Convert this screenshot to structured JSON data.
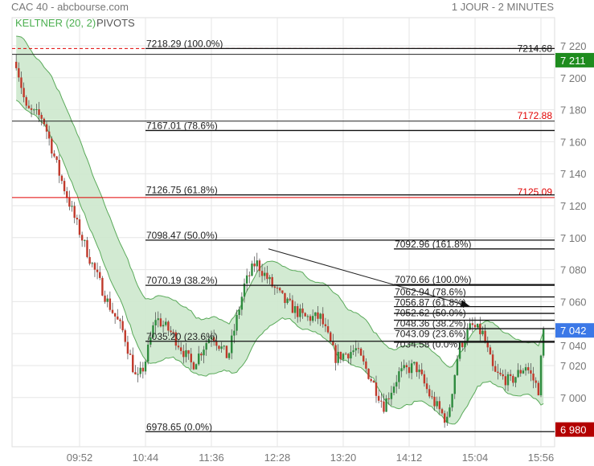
{
  "header": {
    "title": "CAC 40 - abcbourse.com",
    "period": "1 JOUR - 2 MINUTES"
  },
  "indicators": {
    "keltner": "KELTNER (20, 2)",
    "pivots": "PIVOTS"
  },
  "colors": {
    "up": "#2e8b3e",
    "down": "#c0392b",
    "band_fill": "#cde8cd",
    "band_line": "#5aaa5a",
    "last_price": "#3b78e7",
    "high_label": "#1e8c1e",
    "low_label": "#b30000",
    "pivot_red": "#e00000"
  },
  "chart_data": {
    "type": "candlestick",
    "title": "CAC 40",
    "y_ticks": [
      7220,
      7200,
      7180,
      7160,
      7140,
      7120,
      7100,
      7080,
      7060,
      7040,
      7020,
      7000
    ],
    "x_ticks": [
      "09:52",
      "10:44",
      "11:36",
      "12:28",
      "13:20",
      "14:12",
      "15:04",
      "15:56"
    ],
    "ylim": [
      6970,
      7240
    ],
    "grid": true,
    "price_path": [
      [
        "09:02",
        7210
      ],
      [
        "09:10",
        7180
      ],
      [
        "09:23",
        7175
      ],
      [
        "09:36",
        7140
      ],
      [
        "09:49",
        7110
      ],
      [
        "10:01",
        7085
      ],
      [
        "10:14",
        7060
      ],
      [
        "10:27",
        7040
      ],
      [
        "10:37",
        7010
      ],
      [
        "10:43",
        7020
      ],
      [
        "10:52",
        7050
      ],
      [
        "11:05",
        7040
      ],
      [
        "11:21",
        7020
      ],
      [
        "11:36",
        7040
      ],
      [
        "11:49",
        7025
      ],
      [
        "12:02",
        7070
      ],
      [
        "12:11",
        7085
      ],
      [
        "12:24",
        7070
      ],
      [
        "12:34",
        7060
      ],
      [
        "12:49",
        7050
      ],
      [
        "13:02",
        7050
      ],
      [
        "13:14",
        7025
      ],
      [
        "13:30",
        7030
      ],
      [
        "13:43",
        7010
      ],
      [
        "13:52",
        6995
      ],
      [
        "14:04",
        7015
      ],
      [
        "14:17",
        7020
      ],
      [
        "14:29",
        7000
      ],
      [
        "14:42",
        6985
      ],
      [
        "14:51",
        7030
      ],
      [
        "15:01",
        7045
      ],
      [
        "15:10",
        7040
      ],
      [
        "15:19",
        7015
      ],
      [
        "15:32",
        7010
      ],
      [
        "15:44",
        7020
      ],
      [
        "15:54",
        7005
      ],
      [
        "15:58",
        7042
      ]
    ],
    "price_labels": [
      {
        "text": "7 211",
        "value": 7211,
        "color": "#1e8c1e"
      },
      {
        "text": "7 042",
        "value": 7042,
        "color": "#3b78e7"
      },
      {
        "text": "6 980",
        "value": 6980,
        "color": "#b30000"
      }
    ],
    "pivot_lines": [
      {
        "value": 7218.29,
        "style": "dashed-red",
        "label": ""
      },
      {
        "value": 7214.68,
        "style": "black",
        "label": "7214.68"
      },
      {
        "value": 7172.88,
        "style": "black",
        "label": "7172.88",
        "label_color": "#e00000"
      },
      {
        "value": 7125.09,
        "style": "red",
        "label": "7125.09",
        "label_color": "#e00000"
      }
    ],
    "fib_left": {
      "start": "10:44",
      "levels": [
        [
          7218.29,
          "7218.29  (100.0%)"
        ],
        [
          7167.01,
          "7167.01  (78.6%)"
        ],
        [
          7126.75,
          "7126.75  (61.8%)"
        ],
        [
          7098.47,
          "7098.47  (50.0%)"
        ],
        [
          7070.19,
          "7070.19  (38.2%)"
        ],
        [
          7035.2,
          "7035.20  (23.6%)"
        ],
        [
          6978.65,
          "6978.65  (0.0%)"
        ]
      ]
    },
    "fib_right": {
      "start": "14:00",
      "levels": [
        [
          7092.96,
          "7092.96  (161.8%)"
        ],
        [
          7070.66,
          "7070.66  (100.0%)"
        ],
        [
          7062.94,
          "7062.94  (78.6%)"
        ],
        [
          7056.87,
          "7056.87  (61.8%)"
        ],
        [
          7052.62,
          "7052.62  (50.0%)"
        ],
        [
          7048.36,
          "7048.36  (38.2%)"
        ],
        [
          7043.09,
          "7043.09  (23.6%)"
        ],
        [
          7034.58,
          "7034.58  (0.0%)"
        ]
      ]
    },
    "trend_line": [
      [
        "12:21",
        7093
      ],
      [
        "15:00",
        7057
      ]
    ]
  }
}
